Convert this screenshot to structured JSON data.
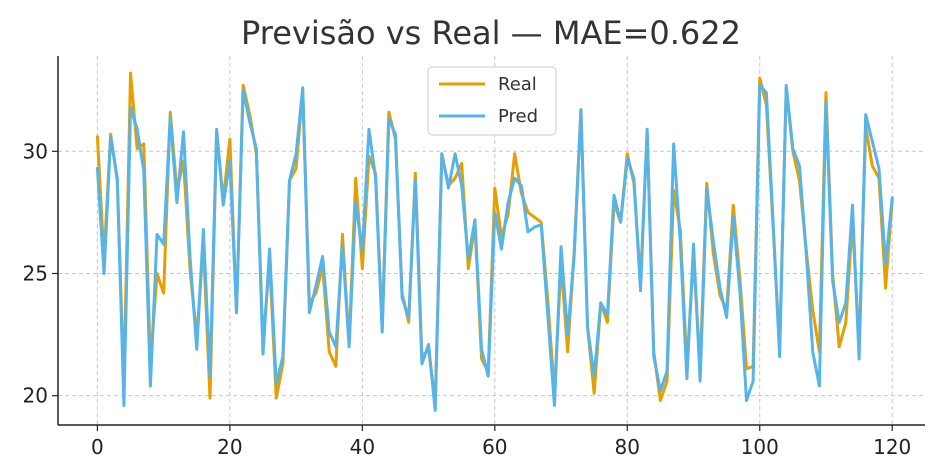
{
  "chart_data": {
    "type": "line",
    "title": "Previsão vs Real — MAE=0.622",
    "xlabel": "",
    "ylabel": "",
    "xlim": [
      -5.95,
      124.95
    ],
    "ylim": [
      18.8,
      33.9
    ],
    "xticks": [
      0,
      20,
      40,
      60,
      80,
      100,
      120
    ],
    "yticks": [
      20,
      25,
      30
    ],
    "grid": true,
    "legend_position": "top-center",
    "series": [
      {
        "name": "Real",
        "color": "#E69F00",
        "values": [
          30.6,
          25.6,
          30.7,
          28.8,
          20.5,
          33.2,
          30.1,
          30.3,
          21.3,
          25.0,
          24.2,
          31.6,
          28.4,
          29.6,
          25.1,
          22.4,
          26.2,
          19.9,
          30.8,
          28.0,
          30.5,
          23.4,
          32.7,
          31.5,
          29.9,
          22.2,
          25.5,
          19.9,
          21.3,
          28.8,
          29.3,
          32.5,
          23.8,
          24.2,
          25.3,
          21.8,
          21.2,
          26.6,
          22.1,
          28.9,
          25.2,
          29.8,
          29.1,
          22.8,
          31.6,
          30.5,
          24.2,
          23.0,
          29.1,
          21.6,
          21.9,
          19.7,
          29.9,
          28.6,
          28.9,
          29.5,
          25.2,
          27.0,
          21.5,
          21.0,
          28.5,
          26.5,
          27.4,
          29.9,
          28.3,
          27.5,
          27.3,
          27.1,
          23.9,
          20.1,
          25.4,
          21.8,
          26.0,
          31.7,
          22.8,
          20.1,
          23.8,
          23.0,
          27.9,
          27.1,
          29.9,
          28.7,
          24.7,
          30.8,
          21.8,
          19.8,
          20.6,
          28.4,
          26.8,
          21.2,
          25.7,
          21.2,
          28.7,
          25.8,
          24.1,
          23.5,
          27.8,
          24.8,
          21.1,
          21.2,
          33.0,
          31.9,
          27.0,
          22.0,
          32.6,
          30.0,
          28.8,
          26.0,
          23.5,
          21.8,
          32.4,
          25.0,
          22.0,
          23.0,
          27.2,
          22.0,
          31.0,
          29.4,
          28.9,
          24.4,
          28.0
        ]
      },
      {
        "name": "Pred",
        "color": "#56B4E9",
        "values": [
          29.3,
          25.0,
          30.6,
          28.9,
          19.6,
          31.8,
          30.9,
          29.2,
          20.4,
          26.6,
          26.2,
          31.4,
          27.9,
          30.8,
          25.6,
          21.9,
          26.8,
          20.8,
          30.9,
          27.8,
          29.6,
          23.4,
          32.5,
          31.2,
          30.1,
          21.7,
          26.0,
          20.5,
          21.6,
          28.8,
          29.9,
          32.6,
          23.4,
          24.5,
          25.7,
          22.6,
          22.0,
          26.2,
          22.0,
          27.9,
          25.9,
          30.9,
          28.9,
          22.6,
          31.3,
          30.7,
          24.0,
          23.2,
          28.8,
          21.3,
          22.1,
          19.4,
          29.9,
          28.5,
          29.9,
          28.6,
          25.6,
          27.2,
          21.9,
          20.8,
          27.5,
          26.0,
          27.9,
          28.9,
          28.6,
          26.7,
          26.9,
          27.0,
          23.3,
          19.6,
          26.1,
          22.5,
          25.8,
          31.7,
          22.8,
          20.8,
          23.8,
          23.3,
          28.2,
          27.1,
          29.7,
          28.9,
          24.3,
          30.9,
          21.6,
          20.2,
          21.0,
          30.3,
          26.3,
          20.7,
          26.2,
          20.6,
          28.5,
          26.3,
          24.4,
          23.2,
          27.3,
          24.3,
          19.8,
          20.6,
          32.7,
          32.4,
          27.2,
          21.6,
          32.7,
          30.1,
          29.4,
          25.9,
          21.8,
          20.4,
          32.0,
          24.7,
          23.0,
          23.8,
          27.8,
          21.5,
          31.5,
          30.4,
          29.3,
          25.4,
          28.1
        ]
      }
    ]
  }
}
